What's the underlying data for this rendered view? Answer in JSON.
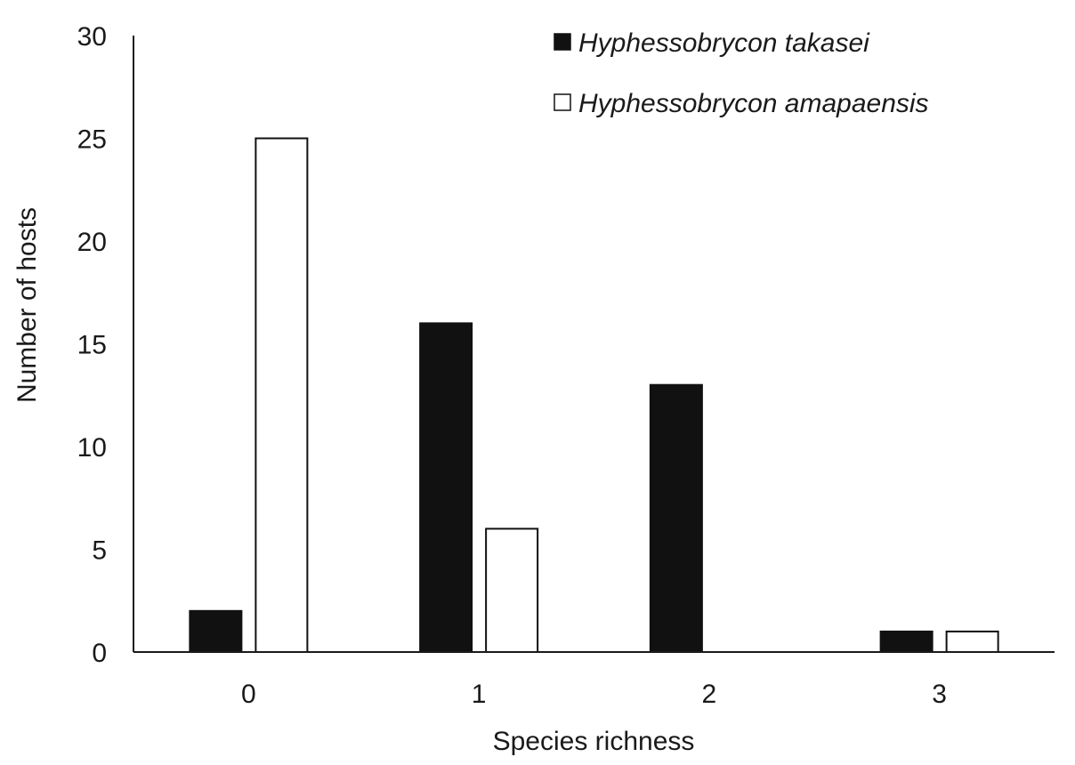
{
  "chart_data": {
    "type": "bar",
    "categories": [
      "0",
      "1",
      "2",
      "3"
    ],
    "series": [
      {
        "name": "Hyphessobrycon takasei",
        "values": [
          2,
          16,
          13,
          1
        ],
        "color": "#111111"
      },
      {
        "name": "Hyphessobrycon amapaensis",
        "values": [
          25,
          6,
          0,
          1
        ],
        "color": "#ffffff"
      }
    ],
    "xlabel": "Species richness",
    "ylabel": "Number of hosts",
    "ylim": [
      0,
      30
    ],
    "yticks": [
      "0",
      "5",
      "10",
      "15",
      "20",
      "25",
      "30"
    ],
    "grid": false,
    "legend_position": "top-right"
  }
}
